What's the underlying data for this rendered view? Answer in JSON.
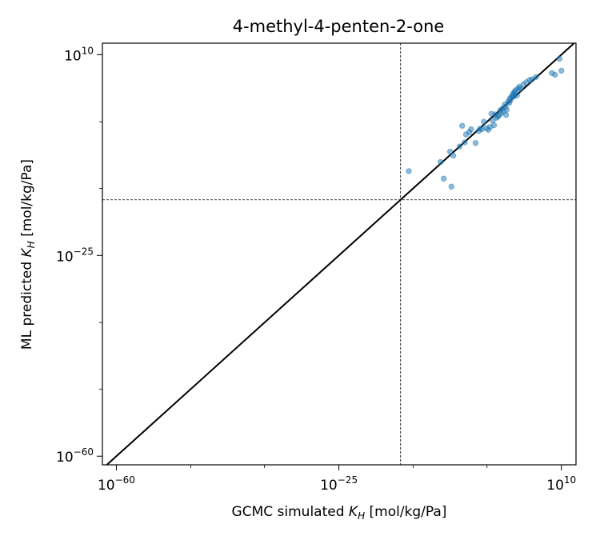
{
  "chart_data": {
    "type": "scatter",
    "title": "4-methyl-4-penten-2-one",
    "xlabel": {
      "prefix": "GCMC simulated ",
      "var": "K",
      "sub": "H",
      "suffix": " [mol/kg/Pa]"
    },
    "ylabel": {
      "prefix": "ML predicted ",
      "var": "K",
      "sub": "H",
      "suffix": " [mol/kg/Pa]"
    },
    "xscale": "log",
    "yscale": "log",
    "xlim_log10": [
      -62.2,
      12.3
    ],
    "ylim_log10": [
      -61.5,
      12.0
    ],
    "major_ticks_log10": [
      -60,
      -25,
      10
    ],
    "minor_ticks_log10": [
      -48.3,
      -36.7,
      -13.3,
      -1.7
    ],
    "tick_base": "10",
    "reference_lines_log10": {
      "x": -15.3,
      "y": -15.3
    },
    "diagonal": "y = x",
    "marker_color": "#1f77b4",
    "marker_alpha": 0.5,
    "points_log10": [
      [
        -14.0,
        -10.3
      ],
      [
        -9.0,
        -8.7
      ],
      [
        -8.5,
        -11.6
      ],
      [
        -7.5,
        -6.9
      ],
      [
        -7.3,
        -13.0
      ],
      [
        -7.0,
        -7.6
      ],
      [
        -6.0,
        -6.0
      ],
      [
        -5.6,
        -2.4
      ],
      [
        -5.2,
        -5.3
      ],
      [
        -5.0,
        -3.9
      ],
      [
        -4.5,
        -3.5
      ],
      [
        -4.2,
        -3.0
      ],
      [
        -3.5,
        -5.4
      ],
      [
        -3.0,
        -3.3
      ],
      [
        -2.8,
        -2.9
      ],
      [
        -2.5,
        -3.0
      ],
      [
        -2.2,
        -1.7
      ],
      [
        -1.8,
        -2.8
      ],
      [
        -1.5,
        -3.1
      ],
      [
        -1.2,
        -2.6
      ],
      [
        -1.0,
        -0.3
      ],
      [
        -0.8,
        -1.5
      ],
      [
        -0.6,
        -2.3
      ],
      [
        -0.4,
        -0.4
      ],
      [
        -0.2,
        -1.0
      ],
      [
        0.0,
        -0.8
      ],
      [
        0.2,
        -0.6
      ],
      [
        0.4,
        0.3
      ],
      [
        0.5,
        -0.2
      ],
      [
        0.7,
        0.6
      ],
      [
        0.9,
        0.1
      ],
      [
        1.1,
        1.3
      ],
      [
        1.2,
        0.9
      ],
      [
        1.3,
        -0.5
      ],
      [
        1.4,
        0.4
      ],
      [
        1.6,
        1.8
      ],
      [
        1.8,
        1.6
      ],
      [
        1.9,
        2.4
      ],
      [
        2.0,
        2.1
      ],
      [
        2.2,
        2.6
      ],
      [
        2.3,
        2.9
      ],
      [
        2.4,
        3.2
      ],
      [
        2.5,
        2.7
      ],
      [
        2.6,
        3.5
      ],
      [
        2.7,
        3.3
      ],
      [
        2.8,
        3.8
      ],
      [
        3.0,
        2.9
      ],
      [
        3.2,
        4.1
      ],
      [
        3.4,
        4.4
      ],
      [
        3.6,
        4.0
      ],
      [
        4.0,
        4.8
      ],
      [
        4.5,
        5.2
      ],
      [
        5.0,
        5.6
      ],
      [
        5.4,
        5.7
      ],
      [
        6.0,
        6.1
      ],
      [
        8.5,
        6.8
      ],
      [
        9.0,
        6.5
      ],
      [
        9.7,
        9.3
      ],
      [
        10.0,
        7.2
      ]
    ]
  }
}
